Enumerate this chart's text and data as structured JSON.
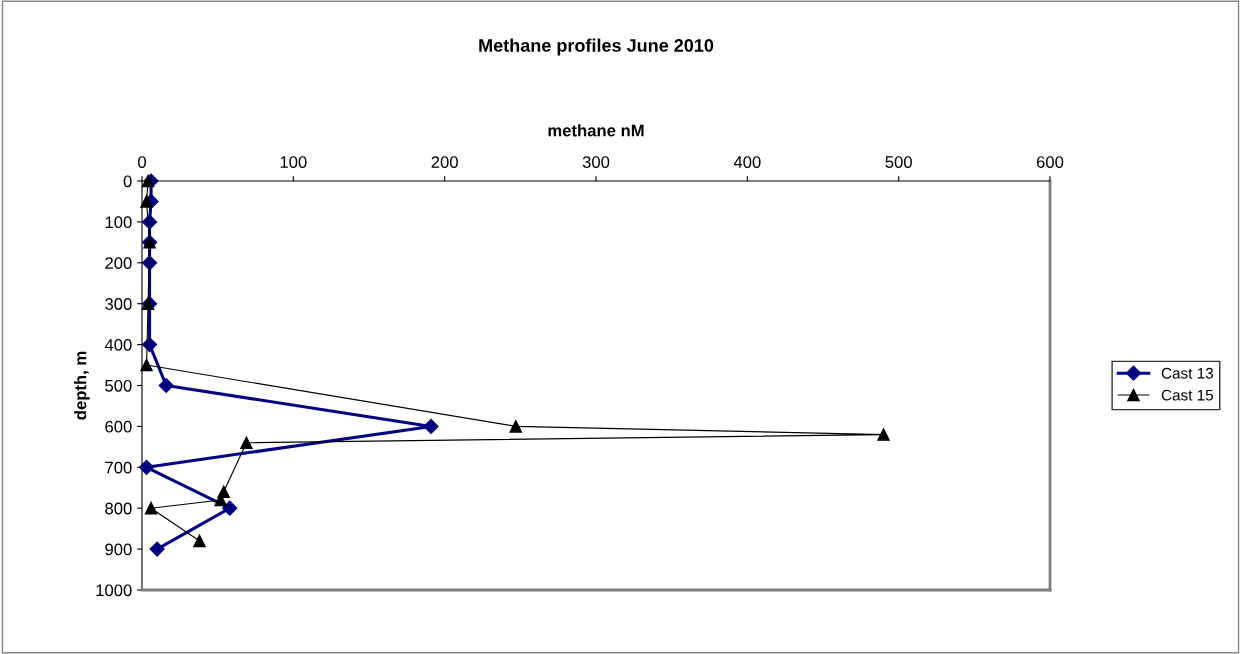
{
  "chart_data": {
    "type": "line",
    "title": "Methane profiles June 2010",
    "xlabel": "methane nM",
    "ylabel": "depth, m",
    "xlim": [
      0,
      600
    ],
    "xticks": [
      0,
      100,
      200,
      300,
      400,
      500,
      600
    ],
    "ylim": [
      1000,
      0
    ],
    "yticks": [
      0,
      100,
      200,
      300,
      400,
      500,
      600,
      700,
      800,
      900,
      1000
    ],
    "legend": "right",
    "grid": false,
    "series": [
      {
        "name": "Cast 13",
        "color": "#000080",
        "marker": "diamond",
        "x": [
          6,
          6,
          5,
          5,
          5,
          5,
          5,
          16,
          191,
          3,
          58,
          10
        ],
        "values": [
          0,
          50,
          100,
          150,
          200,
          300,
          400,
          500,
          600,
          700,
          800,
          900
        ]
      },
      {
        "name": "Cast 15",
        "color": "#000000",
        "marker": "triangle",
        "x": [
          4,
          3,
          5,
          4,
          3,
          247,
          490,
          69,
          54,
          52,
          6,
          38
        ],
        "values": [
          0,
          50,
          150,
          300,
          450,
          600,
          620,
          640,
          760,
          780,
          800,
          880
        ]
      }
    ]
  }
}
